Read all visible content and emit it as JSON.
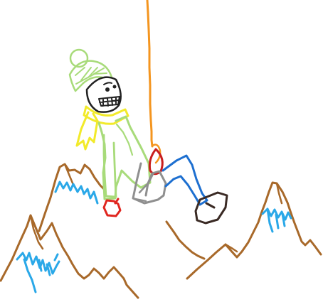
{
  "colors": {
    "background": "#ffffff",
    "mountain": "#a8692a",
    "snow": "#2aa8e8",
    "rope": "#f4951f",
    "hat": "#a8db7a",
    "jacket": "#a8db7a",
    "scarf": "#f2ea2a",
    "carabiner": "#c81e1e",
    "harness": "#8f8f8f",
    "pants": "#1d6fd0",
    "boot": "#3a2a24",
    "mitten": "#e0261f",
    "outline": "#222222"
  },
  "scene": {
    "subjects": [
      "climber",
      "rope",
      "mountains"
    ]
  }
}
